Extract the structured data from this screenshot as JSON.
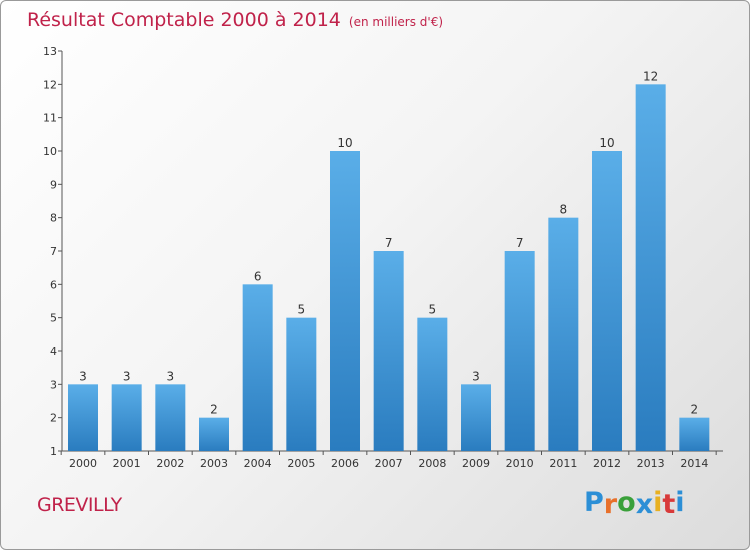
{
  "header": {
    "title": "Résultat Comptable 2000 à 2014",
    "subtitle": "(en milliers d'€)"
  },
  "footer": {
    "city": "GREVILLY",
    "logo_letters": [
      "P",
      "r",
      "o",
      "x",
      "i",
      "t",
      "i"
    ],
    "logo_colors": [
      "#2c8fd6",
      "#e8702a",
      "#3aa03a",
      "#2c8fd6",
      "#e8b020",
      "#d83a3a",
      "#2c8fd6"
    ]
  },
  "colors": {
    "bar_top": "#5aaee8",
    "bar_bottom": "#2a7cbf",
    "axis": "#555555",
    "text": "#333333"
  },
  "chart_data": {
    "type": "bar",
    "title": "Résultat Comptable 2000 à 2014",
    "xlabel": "",
    "ylabel": "",
    "categories": [
      "2000",
      "2001",
      "2002",
      "2003",
      "2004",
      "2005",
      "2006",
      "2007",
      "2008",
      "2009",
      "2010",
      "2011",
      "2012",
      "2013",
      "2014"
    ],
    "values": [
      3,
      3,
      3,
      2,
      6,
      5,
      10,
      7,
      5,
      3,
      7,
      8,
      10,
      12,
      2
    ],
    "yticks": [
      "1",
      "2",
      "3",
      "4",
      "5",
      "6",
      "7",
      "8",
      "9",
      "10",
      "11",
      "12",
      "13"
    ],
    "ylim": [
      1,
      13
    ]
  }
}
